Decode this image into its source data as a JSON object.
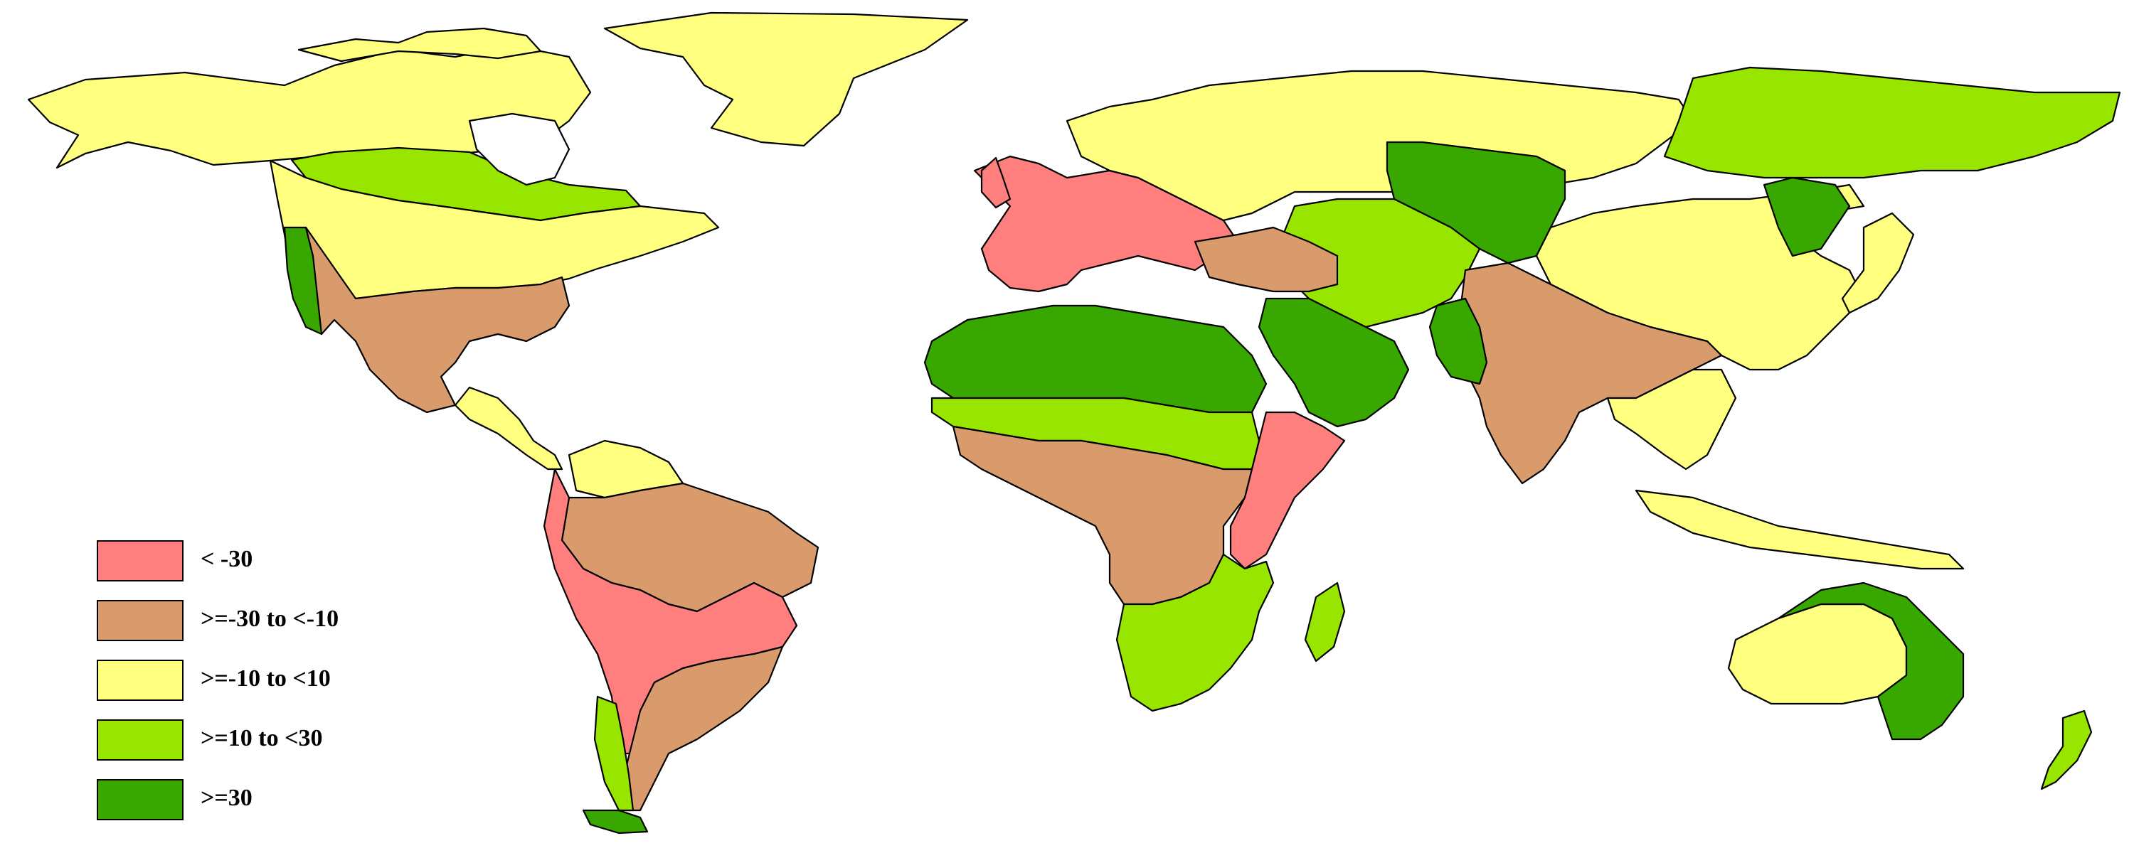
{
  "map": {
    "colors": {
      "lt_neg30": "#ff7f7f",
      "neg30_to_neg10": "#d99b6b",
      "neg10_to_10": "#ffff80",
      "10_to_30": "#98e600",
      "gte_30": "#38a800"
    },
    "regions": [
      {
        "name": "Greenland",
        "class": "neg10_to_10"
      },
      {
        "name": "Alaska and Northern Canada",
        "class": "neg10_to_10"
      },
      {
        "name": "Canadian Prairies",
        "class": "10_to_30"
      },
      {
        "name": "Eastern Canada and Northern US",
        "class": "neg10_to_10"
      },
      {
        "name": "Western and Southern US and Mexico",
        "class": "neg30_to_neg10"
      },
      {
        "name": "US Pacific Coast",
        "class": "gte_30"
      },
      {
        "name": "Central America",
        "class": "neg10_to_10"
      },
      {
        "name": "Northern South America",
        "class": "neg10_to_10"
      },
      {
        "name": "Amazon Basin",
        "class": "neg30_to_neg10"
      },
      {
        "name": "Andes and Central Brazil",
        "class": "lt_neg30"
      },
      {
        "name": "Southern Brazil and Argentina",
        "class": "neg30_to_neg10"
      },
      {
        "name": "Chile",
        "class": "10_to_30"
      },
      {
        "name": "Western and Southern Europe",
        "class": "lt_neg30"
      },
      {
        "name": "Northern Europe and Russia",
        "class": "neg10_to_10"
      },
      {
        "name": "Eastern Siberia",
        "class": "10_to_30"
      },
      {
        "name": "Sahara and Arabia",
        "class": "gte_30"
      },
      {
        "name": "Sahel",
        "class": "10_to_30"
      },
      {
        "name": "Central and Southern Africa",
        "class": "neg30_to_neg10"
      },
      {
        "name": "Southern Africa",
        "class": "10_to_30"
      },
      {
        "name": "East Africa",
        "class": "lt_neg30"
      },
      {
        "name": "Madagascar",
        "class": "10_to_30"
      },
      {
        "name": "Central Asia",
        "class": "10_to_30"
      },
      {
        "name": "Kazakhstan and West Siberia",
        "class": "gte_30"
      },
      {
        "name": "China and Mongolia",
        "class": "neg10_to_10"
      },
      {
        "name": "Tibet and India",
        "class": "neg30_to_neg10"
      },
      {
        "name": "Pakistan",
        "class": "gte_30"
      },
      {
        "name": "Northeast China",
        "class": "gte_30"
      },
      {
        "name": "Southeast Asia",
        "class": "neg10_to_10"
      },
      {
        "name": "Japan",
        "class": "neg10_to_10"
      },
      {
        "name": "Western Australia",
        "class": "neg10_to_10"
      },
      {
        "name": "Eastern Australia",
        "class": "gte_30"
      },
      {
        "name": "New Zealand",
        "class": "10_to_30"
      }
    ]
  },
  "legend": {
    "items": [
      {
        "label": "< -30",
        "color": "#ff7f7f"
      },
      {
        "label": ">=-30 to <-10",
        "color": "#d99b6b"
      },
      {
        "label": ">=-10 to <10",
        "color": "#ffff80"
      },
      {
        "label": ">=10 to <30",
        "color": "#98e600"
      },
      {
        "label": ">=30",
        "color": "#38a800"
      }
    ]
  }
}
